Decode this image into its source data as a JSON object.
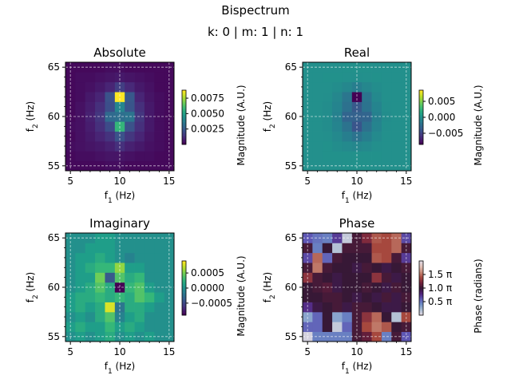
{
  "figure": {
    "title": "Bispectrum",
    "subtitle": "k: 0 | m: 1 | n: 1"
  },
  "colors": {
    "guide_line": "#ffffff",
    "axis": "#000000"
  },
  "chart_data": [
    {
      "type": "heatmap",
      "title": "Absolute",
      "xlabel": "f1 (Hz)",
      "ylabel": "f2 (Hz)",
      "x": [
        5,
        6,
        7,
        8,
        9,
        10,
        11,
        12,
        13,
        14,
        15
      ],
      "y": [
        55,
        56,
        57,
        58,
        59,
        60,
        61,
        62,
        63,
        64,
        65
      ],
      "xlim": [
        4.5,
        15.5
      ],
      "ylim": [
        54.5,
        65.5
      ],
      "xticks": [
        5,
        10,
        15
      ],
      "yticks": [
        55,
        60,
        65
      ],
      "guides": {
        "x": [
          5,
          10,
          15
        ],
        "y": [
          55,
          60,
          65
        ]
      },
      "colormap": "viridis",
      "vmin": 0,
      "vmax": 0.0088,
      "colorbar": {
        "label": "Magnitude (A.U.)",
        "ticks": [
          0.0025,
          0.005,
          0.0075
        ],
        "tick_labels": [
          "0.0025",
          "0.0050",
          "0.0075"
        ]
      },
      "values": [
        [
          0.0002,
          0.0002,
          0.0002,
          0.0002,
          0.0003,
          0.0003,
          0.0002,
          0.0002,
          0.0002,
          0.0002,
          0.0002
        ],
        [
          0.0002,
          0.0003,
          0.0003,
          0.0004,
          0.0005,
          0.0005,
          0.0004,
          0.0003,
          0.0003,
          0.0002,
          0.0002
        ],
        [
          0.0003,
          0.0004,
          0.0005,
          0.0006,
          0.0008,
          0.0012,
          0.0008,
          0.0006,
          0.0004,
          0.0003,
          0.0002
        ],
        [
          0.0002,
          0.0004,
          0.0006,
          0.0009,
          0.0013,
          0.0022,
          0.0014,
          0.0009,
          0.0005,
          0.0003,
          0.0002
        ],
        [
          0.0003,
          0.0004,
          0.0007,
          0.0012,
          0.002,
          0.0058,
          0.0022,
          0.0012,
          0.0006,
          0.0003,
          0.0002
        ],
        [
          0.0002,
          0.0004,
          0.0008,
          0.0014,
          0.003,
          0.0032,
          0.0034,
          0.0014,
          0.0006,
          0.0003,
          0.0002
        ],
        [
          0.0002,
          0.0004,
          0.0007,
          0.0012,
          0.0021,
          0.004,
          0.0023,
          0.0012,
          0.0006,
          0.0003,
          0.0002
        ],
        [
          0.0002,
          0.0003,
          0.0006,
          0.0009,
          0.0022,
          0.0088,
          0.0024,
          0.0009,
          0.0005,
          0.0003,
          0.0002
        ],
        [
          0.0002,
          0.0003,
          0.0004,
          0.0006,
          0.0009,
          0.0016,
          0.001,
          0.0006,
          0.0004,
          0.0002,
          0.0002
        ],
        [
          0.0002,
          0.0003,
          0.0003,
          0.0004,
          0.0005,
          0.0006,
          0.0005,
          0.0004,
          0.0003,
          0.0002,
          0.0002
        ],
        [
          0.0002,
          0.0002,
          0.0002,
          0.0002,
          0.0003,
          0.0003,
          0.0002,
          0.0002,
          0.0002,
          0.0002,
          0.0002
        ]
      ]
    },
    {
      "type": "heatmap",
      "title": "Real",
      "xlabel": "f1 (Hz)",
      "ylabel": "f2 (Hz)",
      "x": [
        5,
        6,
        7,
        8,
        9,
        10,
        11,
        12,
        13,
        14,
        15
      ],
      "y": [
        55,
        56,
        57,
        58,
        59,
        60,
        61,
        62,
        63,
        64,
        65
      ],
      "xlim": [
        4.5,
        15.5
      ],
      "ylim": [
        54.5,
        65.5
      ],
      "xticks": [
        5,
        10,
        15
      ],
      "yticks": [
        55,
        60,
        65
      ],
      "guides": {
        "x": [
          5,
          10,
          15
        ],
        "y": [
          55,
          60,
          65
        ]
      },
      "colormap": "viridis",
      "vmin": -0.0085,
      "vmax": 0.0085,
      "colorbar": {
        "label": "Magnitude (A.U.)",
        "ticks": [
          -0.005,
          0.0,
          0.005
        ],
        "tick_labels": [
          "−0.005",
          "0.000",
          "0.005"
        ]
      },
      "values": [
        [
          0.0,
          0.0,
          0.0,
          0.0,
          0.0001,
          0.0001,
          0.0001,
          0.0,
          0.0,
          0.0,
          0.0
        ],
        [
          0.0,
          0.0,
          0.0001,
          0.0001,
          0.0001,
          0.0001,
          0.0001,
          0.0001,
          0.0,
          0.0,
          0.0
        ],
        [
          0.0,
          0.0,
          0.0001,
          -0.0002,
          -0.0004,
          -0.0006,
          -0.0004,
          -0.0001,
          0.0,
          0.0,
          0.0
        ],
        [
          0.0,
          0.0,
          -0.0001,
          -0.0005,
          -0.0012,
          -0.002,
          -0.0012,
          -0.0004,
          0.0,
          0.0,
          0.0
        ],
        [
          0.0,
          0.0,
          -0.0002,
          -0.0008,
          -0.002,
          -0.004,
          -0.0022,
          -0.0008,
          -0.0001,
          0.0,
          0.0
        ],
        [
          0.0,
          0.0,
          -0.0002,
          -0.001,
          -0.003,
          -0.0032,
          -0.003,
          -0.001,
          -0.0002,
          0.0,
          0.0
        ],
        [
          0.0,
          0.0,
          -0.0002,
          -0.0008,
          -0.0022,
          -0.0038,
          -0.002,
          -0.0008,
          -0.0001,
          0.0,
          0.0
        ],
        [
          0.0,
          0.0,
          -0.0001,
          -0.0006,
          -0.0018,
          -0.0085,
          -0.0018,
          -0.0005,
          0.0,
          0.0,
          0.0
        ],
        [
          0.0,
          0.0,
          0.0,
          -0.0002,
          -0.0006,
          -0.0012,
          -0.0006,
          -0.0002,
          0.0,
          0.0,
          0.0
        ],
        [
          0.0,
          0.0,
          0.0001,
          0.0001,
          0.0,
          -0.0001,
          0.0,
          0.0001,
          0.0,
          0.0,
          0.0
        ],
        [
          0.0,
          0.0,
          0.0,
          0.0,
          0.0001,
          0.0001,
          0.0001,
          0.0,
          0.0,
          0.0,
          0.0
        ]
      ]
    },
    {
      "type": "heatmap",
      "title": "Imaginary",
      "xlabel": "f1 (Hz)",
      "ylabel": "f2 (Hz)",
      "x": [
        5,
        6,
        7,
        8,
        9,
        10,
        11,
        12,
        13,
        14,
        15
      ],
      "y": [
        55,
        56,
        57,
        58,
        59,
        60,
        61,
        62,
        63,
        64,
        65
      ],
      "xlim": [
        4.5,
        15.5
      ],
      "ylim": [
        54.5,
        65.5
      ],
      "xticks": [
        5,
        10,
        15
      ],
      "yticks": [
        55,
        60,
        65
      ],
      "guides": {
        "x": [
          5,
          10,
          15
        ],
        "y": [
          55,
          60,
          65
        ]
      },
      "colormap": "viridis",
      "vmin": -0.0009,
      "vmax": 0.0009,
      "colorbar": {
        "label": "Magnitude (A.U.)",
        "ticks": [
          -0.0005,
          0.0,
          0.0005
        ],
        "tick_labels": [
          "−0.0005",
          "0.0000",
          "0.0005"
        ]
      },
      "values": [
        [
          0.0,
          0.0001,
          0.0,
          0.0001,
          0.0002,
          0.0,
          0.0001,
          0.0,
          0.0001,
          0.0,
          0.0
        ],
        [
          0.0001,
          0.0002,
          0.0001,
          0.0001,
          0.0003,
          0.0001,
          0.0002,
          0.0001,
          0.0,
          0.0,
          0.0
        ],
        [
          0.0,
          0.0001,
          0.0,
          0.0002,
          0.0004,
          -0.0001,
          0.0001,
          0.0002,
          0.0,
          0.0,
          0.0
        ],
        [
          0.0001,
          0.0002,
          0.0001,
          0.0002,
          0.0008,
          -0.0002,
          0.0002,
          0.0002,
          0.0001,
          0.0,
          0.0
        ],
        [
          0.0001,
          0.0002,
          0.0002,
          0.0003,
          0.0002,
          0.0003,
          0.0002,
          0.0004,
          0.0003,
          0.0001,
          0.0
        ],
        [
          0.0,
          0.0001,
          0.0002,
          0.0004,
          0.0002,
          -0.0009,
          0.0003,
          0.0004,
          0.0001,
          0.0,
          0.0
        ],
        [
          0.0,
          0.0001,
          0.0001,
          0.0005,
          -0.0004,
          0.0004,
          0.0002,
          0.0003,
          0.0,
          0.0,
          0.0
        ],
        [
          0.0,
          0.0001,
          0.0002,
          0.0003,
          0.0003,
          0.0006,
          0.0001,
          0.0001,
          0.0,
          0.0,
          0.0
        ],
        [
          0.0,
          0.0001,
          0.0001,
          0.0002,
          0.0001,
          0.0,
          -0.0001,
          0.0,
          0.0,
          0.0,
          0.0
        ],
        [
          0.0,
          0.0,
          0.0001,
          0.0001,
          0.0001,
          0.0,
          0.0,
          0.0,
          0.0,
          0.0,
          0.0
        ],
        [
          0.0,
          0.0,
          0.0,
          0.0001,
          0.0001,
          0.0,
          0.0,
          0.0,
          0.0,
          0.0,
          0.0
        ]
      ]
    },
    {
      "type": "heatmap",
      "title": "Phase",
      "xlabel": "f1 (Hz)",
      "ylabel": "f2 (Hz)",
      "x": [
        5,
        6,
        7,
        8,
        9,
        10,
        11,
        12,
        13,
        14,
        15
      ],
      "y": [
        55,
        56,
        57,
        58,
        59,
        60,
        61,
        62,
        63,
        64,
        65
      ],
      "xlim": [
        4.5,
        15.5
      ],
      "ylim": [
        54.5,
        65.5
      ],
      "xticks": [
        5,
        10,
        15
      ],
      "yticks": [
        55,
        60,
        65
      ],
      "guides": {
        "x": [
          5,
          10,
          15
        ],
        "y": [
          55,
          60,
          65
        ]
      },
      "colormap": "twilight",
      "vmin": 0,
      "vmax": 2,
      "colorbar": {
        "label": "Phase (radians)",
        "ticks": [
          0.5,
          1.0,
          1.5
        ],
        "tick_labels": [
          "0.5 π",
          "1.0 π",
          "1.5 π"
        ]
      },
      "values": [
        [
          0.05,
          0.45,
          0.45,
          0.45,
          0.45,
          1.05,
          1.15,
          1.4,
          0.45,
          1.05,
          0.6
        ],
        [
          0.55,
          0.55,
          1.0,
          0.1,
          0.55,
          1.05,
          1.4,
          1.55,
          1.45,
          1.0,
          1.05
        ],
        [
          0.3,
          0.55,
          1.0,
          0.3,
          0.45,
          1.05,
          1.3,
          1.5,
          1.0,
          0.15,
          1.4
        ],
        [
          0.75,
          0.95,
          1.0,
          1.05,
          0.95,
          1.05,
          1.05,
          1.0,
          0.95,
          0.95,
          1.0
        ],
        [
          1.0,
          1.0,
          1.05,
          1.05,
          1.0,
          0.95,
          1.0,
          0.95,
          1.05,
          0.95,
          1.05
        ],
        [
          1.0,
          1.05,
          1.1,
          0.95,
          1.0,
          1.0,
          1.05,
          1.0,
          0.95,
          1.05,
          1.0
        ],
        [
          1.3,
          1.05,
          1.0,
          0.95,
          1.0,
          1.0,
          1.0,
          1.3,
          1.05,
          0.95,
          1.0
        ],
        [
          1.05,
          1.55,
          1.05,
          1.0,
          1.0,
          0.95,
          1.05,
          1.0,
          0.95,
          1.0,
          1.05
        ],
        [
          0.65,
          1.5,
          0.55,
          1.05,
          1.0,
          1.0,
          1.0,
          1.45,
          1.4,
          1.05,
          0.7
        ],
        [
          1.05,
          0.45,
          1.0,
          0.15,
          1.05,
          1.05,
          1.05,
          1.4,
          1.4,
          1.5,
          1.05
        ],
        [
          0.6,
          0.5,
          0.45,
          0.7,
          0.1,
          1.05,
          1.25,
          1.45,
          1.4,
          1.5,
          0.65
        ]
      ]
    }
  ]
}
